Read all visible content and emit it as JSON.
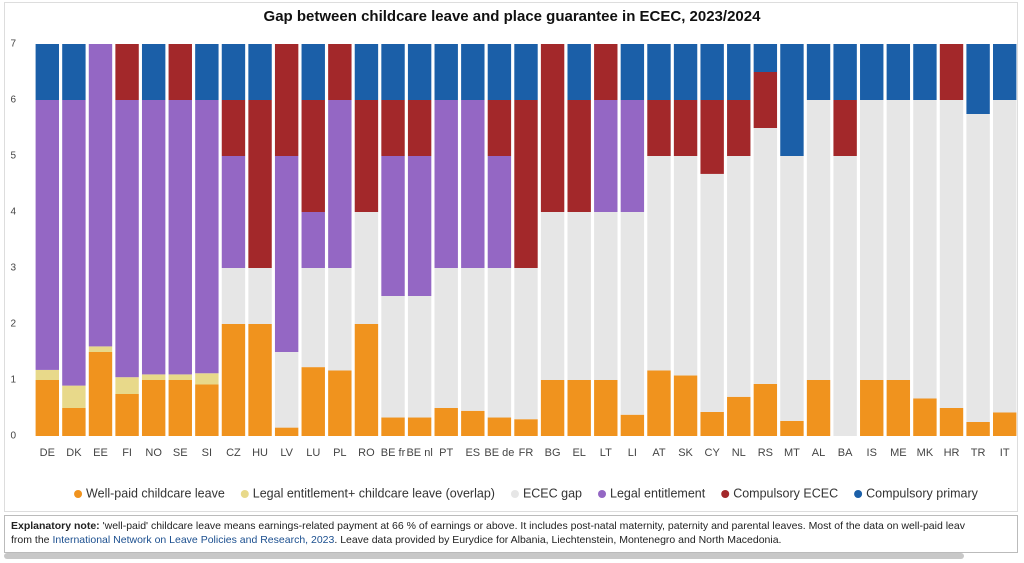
{
  "chart_data": {
    "type": "stacked-bar",
    "title": "Gap between childcare leave and place guarantee in ECEC, 2023/2024",
    "categories": [
      "DE",
      "DK",
      "EE",
      "FI",
      "NO",
      "SE",
      "SI",
      "CZ",
      "HU",
      "LV",
      "LU",
      "PL",
      "RO",
      "BE fr",
      "BE nl",
      "PT",
      "ES",
      "BE de",
      "FR",
      "BG",
      "EL",
      "LT",
      "LI",
      "AT",
      "SK",
      "CY",
      "NL",
      "RS",
      "MT",
      "AL",
      "BA",
      "IS",
      "ME",
      "MK",
      "HR",
      "TR",
      "IT"
    ],
    "series": [
      {
        "name": "Well-paid childcare leave",
        "color": "#f0931e",
        "values": [
          1,
          0.5,
          1.5,
          0.75,
          1,
          1,
          0.92,
          2,
          2,
          0.15,
          1.23,
          1.17,
          2,
          0.33,
          0.33,
          0.5,
          0.45,
          0.33,
          0.3,
          1,
          1,
          1,
          0.38,
          1.17,
          1.08,
          0.43,
          0.7,
          0.93,
          0.27,
          1,
          0,
          1,
          1,
          0.67,
          0.5,
          0.25,
          0.42
        ]
      },
      {
        "name": "Legal entitlement+ childcare leave (overlap)",
        "color": "#e8d98a",
        "values": [
          0.18,
          0.4,
          0.1,
          0.3,
          0.1,
          0.1,
          0.2,
          0,
          0,
          0,
          0,
          0,
          0,
          0,
          0,
          0,
          0,
          0,
          0,
          0,
          0,
          0,
          0,
          0,
          0,
          0,
          0,
          0,
          0,
          0,
          0,
          0,
          0,
          0,
          0,
          0,
          0
        ]
      },
      {
        "name": "ECEC gap",
        "color": "#e6e6e6",
        "values": [
          0,
          0,
          0,
          0,
          0,
          0,
          0,
          1,
          1,
          1.35,
          1.77,
          1.83,
          2,
          2.17,
          2.17,
          2.5,
          2.55,
          2.67,
          2.7,
          3,
          3,
          3,
          3.62,
          3.83,
          3.92,
          4.25,
          4.3,
          4.57,
          4.73,
          5,
          5,
          5,
          5,
          5.33,
          5.5,
          5.5,
          5.58
        ]
      },
      {
        "name": "Legal entitlement",
        "color": "#9467c4",
        "values": [
          4.82,
          5.1,
          5.4,
          4.95,
          4.9,
          4.9,
          4.88,
          2,
          0,
          3.5,
          1,
          3,
          0,
          2.5,
          2.5,
          3,
          3,
          2,
          0,
          0,
          0,
          2,
          2,
          0,
          0,
          0,
          0,
          0,
          0,
          0,
          0,
          0,
          0,
          0,
          0,
          0,
          0
        ]
      },
      {
        "name": "Compulsory ECEC",
        "color": "#a3282a",
        "values": [
          0,
          0,
          0,
          1,
          0,
          1,
          0,
          1,
          3,
          2,
          2,
          1,
          2,
          1,
          1,
          0,
          0,
          1,
          3,
          3,
          2,
          1,
          0,
          1,
          1,
          1.32,
          1,
          1,
          0,
          0,
          1,
          0,
          0,
          0,
          1,
          0,
          0
        ]
      },
      {
        "name": "Compulsory primary",
        "color": "#1b5fa8",
        "values": [
          1,
          1,
          0,
          0,
          1,
          0,
          1,
          1,
          1,
          0,
          1,
          0,
          1,
          1,
          1,
          1,
          1,
          1,
          1,
          0,
          1,
          0,
          1,
          1,
          1,
          1,
          1,
          0.5,
          2,
          1,
          1,
          1,
          1,
          1,
          0,
          1.25,
          1
        ]
      }
    ],
    "ylim": [
      0,
      7
    ],
    "yticks": [
      0,
      1,
      2,
      3,
      4,
      5,
      6,
      7
    ],
    "legend": "bottom"
  },
  "note": {
    "label": "Explanatory note:",
    "text1": "'well-paid' childcare leave means earnings-related payment at 66 % of earnings or above. It includes post-natal maternity, paternity and parental leaves. Most of the data on well-paid leav",
    "text2a": "from the ",
    "link": "International Network on Leave Policies and Research, 2023",
    "text2b": ". Leave data provided by Eurydice for Albania, Liechtenstein, Montenegro and North Macedonia."
  }
}
